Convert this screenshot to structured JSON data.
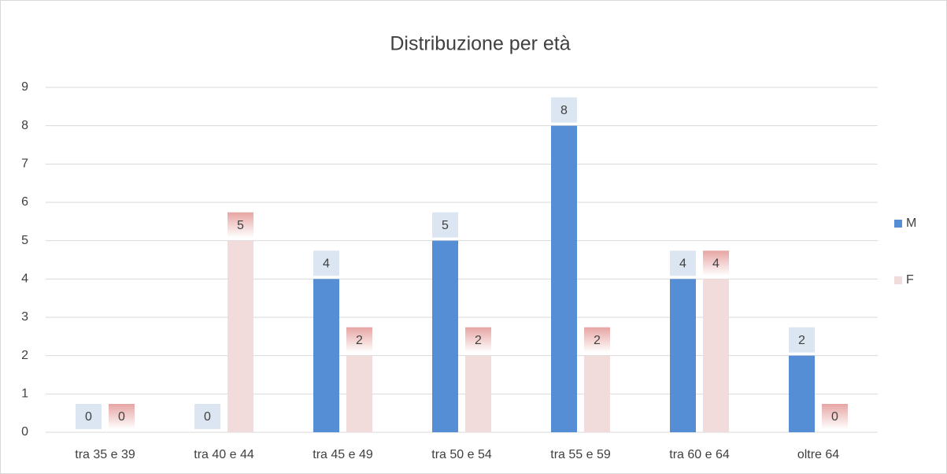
{
  "chart_data": {
    "type": "bar",
    "title": "Distribuzione per età",
    "categories": [
      "tra 35 e 39",
      "tra 40 e 44",
      "tra 45 e 49",
      "tra 50 e 54",
      "tra 55 e 59",
      "tra 60 e 64",
      "oltre 64"
    ],
    "series": [
      {
        "name": "M",
        "color": "#558ed5",
        "values": [
          0,
          0,
          4,
          5,
          8,
          4,
          2
        ]
      },
      {
        "name": "F",
        "color": "#f2dcdb",
        "values": [
          0,
          5,
          2,
          2,
          2,
          4,
          0
        ]
      }
    ],
    "ylim": [
      0,
      9
    ],
    "yticks": [
      0,
      1,
      2,
      3,
      4,
      5,
      6,
      7,
      8,
      9
    ],
    "grid": true,
    "legend": "right"
  }
}
